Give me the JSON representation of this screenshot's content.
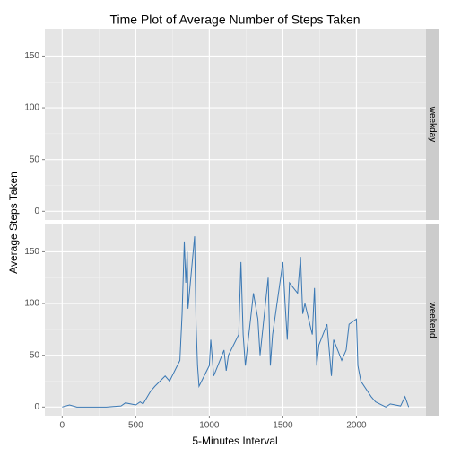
{
  "chart_data": {
    "type": "line",
    "title": "Time Plot of Average Number of Steps Taken",
    "x_label": "5-Minutes Interval",
    "y_label": "Average Steps Taken",
    "x": [
      0,
      50,
      100,
      200,
      300,
      400,
      430,
      500,
      530,
      550,
      600,
      630,
      700,
      730,
      800,
      815,
      830,
      840,
      850,
      855,
      900,
      910,
      920,
      930,
      1000,
      1010,
      1030,
      1100,
      1115,
      1130,
      1200,
      1215,
      1230,
      1245,
      1300,
      1330,
      1345,
      1400,
      1415,
      1430,
      1500,
      1515,
      1530,
      1545,
      1600,
      1620,
      1635,
      1650,
      1700,
      1715,
      1730,
      1745,
      1800,
      1830,
      1845,
      1900,
      1930,
      1950,
      2000,
      2010,
      2030,
      2100,
      2130,
      2200,
      2230,
      2300,
      2330,
      2355
    ],
    "series": [
      {
        "name": "weekday",
        "color": "#3a78b4",
        "values": [
          null,
          null,
          null,
          null,
          null,
          null,
          null,
          null,
          null,
          null,
          null,
          null,
          null,
          null,
          null,
          null,
          null,
          null,
          null,
          null,
          null,
          null,
          null,
          null,
          null,
          null,
          null,
          null,
          null,
          null,
          null,
          null,
          null,
          null,
          null,
          null,
          null,
          null,
          null,
          null,
          null,
          null,
          null,
          null,
          null,
          null,
          null,
          null,
          null,
          null,
          null,
          null,
          null,
          null,
          null,
          null,
          null,
          null,
          null,
          null,
          null,
          null,
          null,
          null,
          null,
          null,
          null,
          null
        ]
      },
      {
        "name": "weekend",
        "color": "#3a78b4",
        "values": [
          0,
          2,
          0,
          0,
          0,
          1,
          4,
          2,
          5,
          3,
          15,
          20,
          30,
          25,
          45,
          90,
          160,
          120,
          150,
          95,
          165,
          80,
          40,
          20,
          40,
          65,
          30,
          55,
          35,
          50,
          70,
          140,
          70,
          40,
          110,
          85,
          50,
          125,
          40,
          70,
          140,
          100,
          65,
          120,
          110,
          145,
          90,
          100,
          70,
          115,
          40,
          60,
          80,
          30,
          65,
          45,
          55,
          80,
          85,
          40,
          25,
          10,
          5,
          0,
          3,
          1,
          10,
          0
        ]
      }
    ],
    "xlim": [
      -117.75,
      2472.75
    ],
    "xticks": [
      0,
      500,
      1000,
      1500,
      2000
    ],
    "ylim": [
      -8.4,
      176.4
    ],
    "yticks": [
      0,
      50,
      100,
      150
    ],
    "grid": true
  }
}
